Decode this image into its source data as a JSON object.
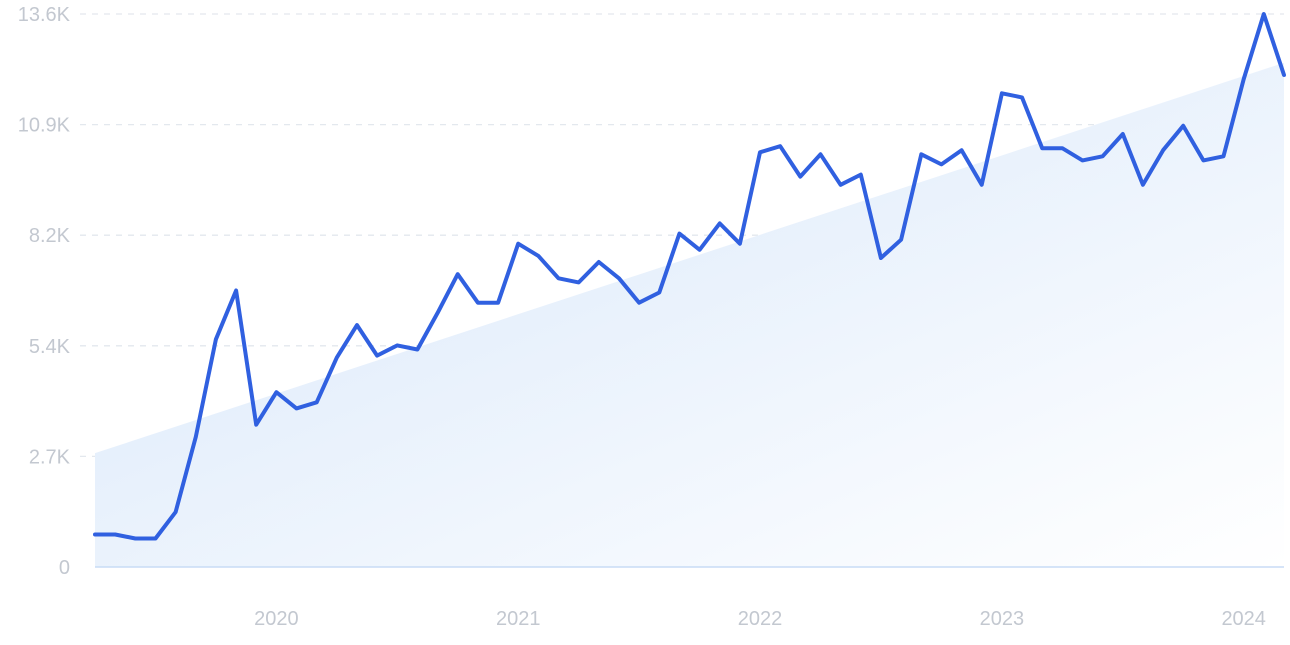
{
  "chart_data": {
    "type": "line",
    "title": "",
    "xlabel": "",
    "ylabel": "",
    "x_ticks": [
      "2020",
      "2021",
      "2022",
      "2023",
      "2024"
    ],
    "y_ticks": [
      "0",
      "2.7K",
      "5.4K",
      "8.2K",
      "10.9K",
      "13.6K"
    ],
    "ylim": [
      0,
      13600
    ],
    "grid": true,
    "x": [
      "2019-04",
      "2019-05",
      "2019-06",
      "2019-07",
      "2019-08",
      "2019-09",
      "2019-10",
      "2019-11",
      "2019-12",
      "2020-01",
      "2020-02",
      "2020-03",
      "2020-04",
      "2020-05",
      "2020-06",
      "2020-07",
      "2020-08",
      "2020-09",
      "2020-10",
      "2020-11",
      "2020-12",
      "2021-01",
      "2021-02",
      "2021-03",
      "2021-04",
      "2021-05",
      "2021-06",
      "2021-07",
      "2021-08",
      "2021-09",
      "2021-10",
      "2021-11",
      "2021-12",
      "2022-01",
      "2022-02",
      "2022-03",
      "2022-04",
      "2022-05",
      "2022-06",
      "2022-07",
      "2022-08",
      "2022-09",
      "2022-10",
      "2022-11",
      "2022-12",
      "2023-01",
      "2023-02",
      "2023-03",
      "2023-04",
      "2023-05",
      "2023-06",
      "2023-07",
      "2023-08",
      "2023-09",
      "2023-10",
      "2023-11",
      "2023-12",
      "2024-01",
      "2024-02",
      "2024-03"
    ],
    "series": [
      {
        "values": [
          800,
          800,
          700,
          700,
          1350,
          3200,
          5600,
          6800,
          3500,
          4300,
          3900,
          4050,
          5150,
          5950,
          5200,
          5450,
          5350,
          6250,
          7200,
          6500,
          6500,
          7950,
          7650,
          7100,
          7000,
          7500,
          7100,
          6500,
          6750,
          8200,
          7800,
          8450,
          7950,
          10200,
          10350,
          9600,
          10150,
          9400,
          9650,
          7600,
          8050,
          10150,
          9900,
          10250,
          9400,
          11650,
          11550,
          10300,
          10300,
          10000,
          10100,
          10650,
          9400,
          10250,
          10850,
          10000,
          10100,
          12000,
          13600,
          12100
        ]
      }
    ],
    "trend": [
      2800,
      12400
    ],
    "colors": {
      "line": "#3060e0",
      "area_top": "#dbe9fb",
      "area_bottom": "#ffffff",
      "grid": "#e3e8ee",
      "axis": "#c8dcf5",
      "tick_text": "#c3c8d0"
    }
  }
}
